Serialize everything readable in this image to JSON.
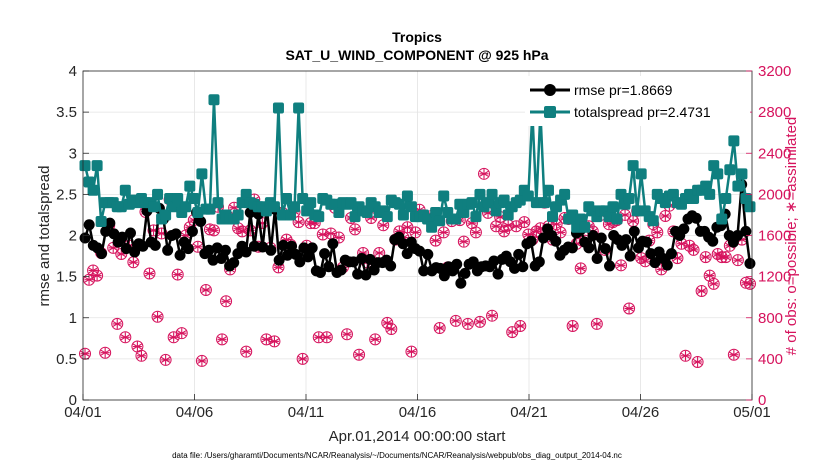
{
  "chart_data": {
    "type": "line",
    "title": "Tropics",
    "subtitle": "SAT_U_WIND_COMPONENT @ 925 hPa",
    "xlabel": "Apr.01,2014 00:00:00 start",
    "ylabel": "rmse and totalspread",
    "ylabel_right": "# of obs: o=possible; ∗=assimilated",
    "footnote": "data file: /Users/gharamti/Documents/NCAR/Reanalysis/~/Documents/NCAR/Reanalysis/webpub/obs_diag_output_2014-04.nc",
    "xlim": [
      0,
      30
    ],
    "ylim": [
      0,
      4
    ],
    "ylim_right": [
      0,
      3200
    ],
    "x_ticks": [
      0,
      5,
      10,
      15,
      20,
      25,
      30
    ],
    "x_tick_labels": [
      "04/01",
      "04/06",
      "04/11",
      "04/16",
      "04/21",
      "04/26",
      "05/01"
    ],
    "y_ticks": [
      0,
      0.5,
      1,
      1.5,
      2,
      2.5,
      3,
      3.5,
      4
    ],
    "y_tick_labels": [
      "0",
      "0.5",
      "1",
      "1.5",
      "2",
      "2.5",
      "3",
      "3.5",
      "4"
    ],
    "y_ticks_right": [
      0,
      400,
      800,
      1200,
      1600,
      2000,
      2400,
      2800,
      3200
    ],
    "y_tick_labels_right": [
      "0",
      "400",
      "800",
      "1200",
      "1600",
      "2000",
      "2400",
      "2800",
      "3200"
    ],
    "legend_position": "top-right",
    "colors": {
      "rmse": "#000000",
      "totalspread": "#0f7f7f",
      "obs": "#d6135d",
      "grid": "#e3e3e3",
      "axis": "#262626"
    },
    "series": [
      {
        "name": "rmse",
        "label": "rmse pr=1.8669",
        "values": [
          1.97,
          2.13,
          1.88,
          1.85,
          1.78,
          2.05,
          2.15,
          2.02,
          1.92,
          1.98,
          1.84,
          2.03,
          1.8,
          1.9,
          1.87,
          2.3,
          1.92,
          1.88,
          2.33,
          2.2,
          1.82,
          2.0,
          2.02,
          1.76,
          1.92,
          1.84,
          2.05,
          2.28,
          2.17,
          1.78,
          1.82,
          1.7,
          1.85,
          1.72,
          1.82,
          1.63,
          1.67,
          1.78,
          1.87,
          1.8,
          2.28,
          1.87,
          2.26,
          1.86,
          2.35,
          1.82,
          2.32,
          1.7,
          1.88,
          1.76,
          1.87,
          1.77,
          1.68,
          1.85,
          1.74,
          1.85,
          1.57,
          1.55,
          1.78,
          1.62,
          1.9,
          1.55,
          1.58,
          1.7,
          1.68,
          1.68,
          1.53,
          1.72,
          1.52,
          1.71,
          1.58,
          1.67,
          1.67,
          1.7,
          1.63,
          1.95,
          1.98,
          1.9,
          1.78,
          1.92,
          1.84,
          1.81,
          1.57,
          1.77,
          1.57,
          1.61,
          1.6,
          1.51,
          1.62,
          1.57,
          1.65,
          1.42,
          1.54,
          1.65,
          1.68,
          1.57,
          1.62,
          1.63,
          1.62,
          1.69,
          1.53,
          1.71,
          1.75,
          1.68,
          1.6,
          1.77,
          1.62,
          1.9,
          1.93,
          1.63,
          1.68,
          1.97,
          2.08,
          2.0,
          1.93,
          1.76,
          1.82,
          1.86,
          1.85,
          2.03,
          2.07,
          1.92,
          1.85,
          2.0,
          1.72,
          1.97,
          1.84,
          1.63,
          2.0,
          1.95,
          1.88,
          1.95,
          1.75,
          2.05,
          1.85,
          1.93,
          1.92,
          1.78,
          1.67,
          1.8,
          1.72,
          1.64,
          1.78,
          2.05,
          2.0,
          2.08,
          2.2,
          2.24,
          2.21,
          2.05,
          2.05,
          1.98,
          1.93,
          2.1,
          2.12,
          2.26,
          2.0,
          1.92,
          2.0,
          2.62,
          2.05,
          1.66
        ]
      },
      {
        "name": "totalspread",
        "label": "totalspread pr=2.4731",
        "values": [
          2.85,
          2.65,
          2.55,
          2.85,
          2.17,
          2.4,
          2.4,
          2.4,
          2.35,
          2.35,
          2.55,
          2.38,
          2.43,
          2.4,
          2.45,
          2.4,
          2.4,
          2.35,
          2.5,
          2.2,
          2.25,
          2.45,
          2.35,
          2.45,
          2.28,
          2.35,
          2.6,
          2.45,
          2.28,
          2.75,
          2.32,
          2.32,
          3.65,
          2.4,
          2.2,
          2.25,
          2.2,
          2.2,
          2.25,
          2.4,
          2.5,
          2.4,
          2.38,
          2.35,
          2.35,
          2.3,
          2.4,
          2.35,
          3.55,
          2.25,
          2.45,
          2.25,
          2.35,
          3.55,
          2.45,
          2.3,
          2.4,
          2.25,
          2.23,
          2.45,
          2.43,
          2.38,
          2.38,
          2.28,
          2.4,
          2.38,
          2.4,
          2.23,
          2.35,
          2.3,
          2.28,
          2.4,
          2.35,
          2.28,
          2.3,
          2.23,
          2.43,
          2.4,
          2.38,
          2.25,
          2.48,
          2.35,
          2.23,
          2.23,
          2.25,
          2.2,
          2.1,
          2.28,
          2.18,
          2.48,
          2.28,
          2.2,
          2.2,
          2.38,
          2.28,
          2.38,
          2.4,
          2.23,
          2.5,
          2.35,
          2.4,
          2.5,
          2.3,
          2.4,
          2.43,
          2.25,
          2.35,
          2.4,
          2.43,
          2.55,
          2.48,
          3.5,
          2.4,
          3.5,
          2.4,
          2.55,
          2.23,
          2.35,
          2.43,
          2.5,
          2.2,
          2.25,
          2.1,
          2.2,
          2.1,
          2.35,
          2.3,
          2.23,
          2.3,
          2.3,
          2.23,
          2.35,
          2.2,
          2.5,
          2.38,
          2.45,
          2.85,
          2.3,
          2.75,
          2.3,
          2.23,
          2.18,
          2.5,
          2.45,
          2.4,
          2.48,
          2.5,
          2.4,
          2.38,
          2.45,
          2.5,
          2.45,
          2.55,
          2.55,
          2.6,
          2.5,
          2.85,
          2.75,
          2.2,
          2.45,
          2.8,
          3.15,
          2.6,
          2.75,
          2.45,
          2.35
        ]
      }
    ],
    "obs_possible": [
      450,
      1170,
      1260,
      1210,
      1430,
      460,
      1700,
      1480,
      740,
      1420,
      610,
      1500,
      1340,
      520,
      430,
      1830,
      1230,
      1650,
      810,
      1620,
      390,
      1950,
      610,
      1220,
      650,
      1600,
      1680,
      1750,
      1490,
      380,
      1070,
      1660,
      1650,
      1880,
      590,
      960,
      1270,
      1870,
      1670,
      1640,
      470,
      1650,
      1950,
      1490,
      1720,
      590,
      1480,
      570,
      1290,
      1820,
      1560,
      1510,
      1830,
      1730,
      400,
      1500,
      1720,
      1720,
      610,
      1610,
      610,
      1620,
      1870,
      1580,
      1290,
      640,
      1770,
      1660,
      440,
      1430,
      1340,
      1770,
      590,
      1430,
      1700,
      750,
      690,
      1560,
      1640,
      1580,
      1680,
      470,
      1630,
      1850,
      1790,
      1770,
      1790,
      1550,
      700,
      1630,
      1290,
      1740,
      770,
      1750,
      1540,
      740,
      1720,
      1630,
      760,
      2200,
      1820,
      820,
      1690,
      1780,
      1640,
      1700,
      660,
      1690,
      720,
      1730,
      1610,
      1560,
      1640,
      1670,
      1920,
      1690,
      1560,
      1710,
      1630,
      1770,
      1760,
      720,
      1520,
      1280,
      1550,
      1690,
      1640,
      740,
      1800,
      1460,
      1710,
      1730,
      1750,
      1310,
      1800,
      890,
      1740,
      1840,
      1380,
      1350,
      1550,
      1710,
      1630,
      1270,
      1790,
      1890,
      1640,
      1380,
      1520,
      430,
      1500,
      1460,
      370,
      1060,
      1390,
      1210,
      1130,
      1420,
      1390,
      1390,
      1500,
      440,
      1360,
      1560,
      1140,
      1130
    ]
  }
}
